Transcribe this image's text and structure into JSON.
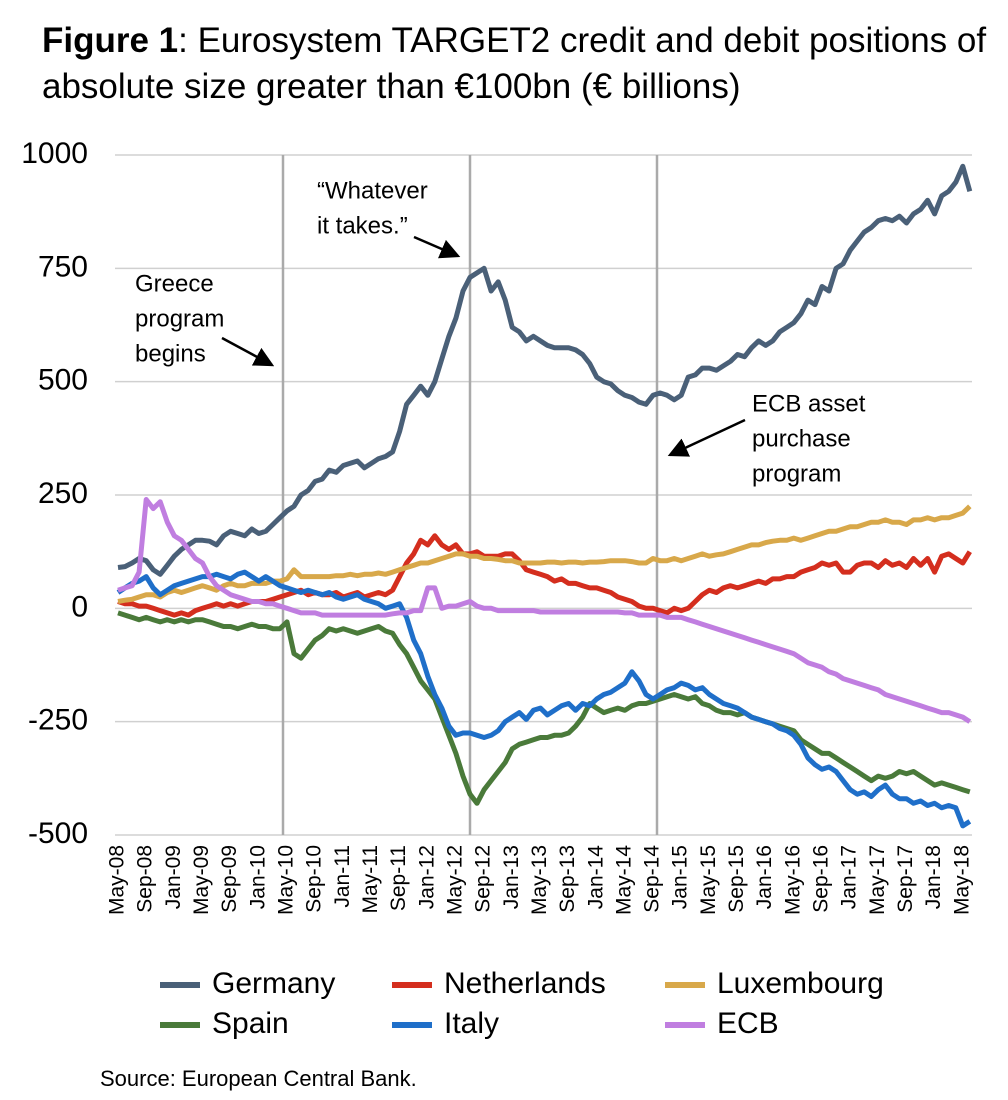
{
  "chart_data": {
    "type": "line",
    "figure_label": "Figure 1",
    "title": ": Eurosystem TARGET2 credit and debit positions of absolute size greater than €100bn (€ billions)",
    "source": "Source: European Central Bank.",
    "annotations": [
      [
        "Greece",
        "program",
        "begins"
      ],
      [
        "“Whatever",
        "it takes.”"
      ],
      [
        "ECB asset",
        "purchase",
        "program"
      ]
    ],
    "categories": [
      "May-08",
      null,
      null,
      null,
      "Sep-08",
      null,
      null,
      null,
      "Jan-09",
      null,
      null,
      null,
      "May-09",
      null,
      null,
      null,
      "Sep-09",
      null,
      null,
      null,
      "Jan-10",
      null,
      null,
      null,
      "May-10",
      null,
      null,
      null,
      "Sep-10",
      null,
      null,
      null,
      "Jan-11",
      null,
      null,
      null,
      "May-11",
      null,
      null,
      null,
      "Sep-11",
      null,
      null,
      null,
      "Jan-12",
      null,
      null,
      null,
      "May-12",
      null,
      null,
      null,
      "Sep-12",
      null,
      null,
      null,
      "Jan-13",
      null,
      null,
      null,
      "May-13",
      null,
      null,
      null,
      "Sep-13",
      null,
      null,
      null,
      "Jan-14",
      null,
      null,
      null,
      "May-14",
      null,
      null,
      null,
      "Sep-14",
      null,
      null,
      null,
      "Jan-15",
      null,
      null,
      null,
      "May-15",
      null,
      null,
      null,
      "Sep-15",
      null,
      null,
      null,
      "Jan-16",
      null,
      null,
      null,
      "May-16",
      null,
      null,
      null,
      "Sep-16",
      null,
      null,
      null,
      "Jan-17",
      null,
      null,
      null,
      "May-17",
      null,
      null,
      null,
      "Sep-17",
      null,
      null,
      null,
      "Jan-18",
      null,
      null,
      null,
      "May-18",
      null
    ],
    "ylim": [
      -500,
      1000
    ],
    "yticks": [
      -500,
      -250,
      0,
      250,
      500,
      750,
      1000
    ],
    "grid": true,
    "series": [
      {
        "name": "Germany",
        "color": "#4a6078",
        "values": [
          90,
          92,
          100,
          110,
          105,
          85,
          75,
          95,
          115,
          130,
          140,
          150,
          150,
          148,
          140,
          160,
          170,
          165,
          160,
          175,
          165,
          170,
          185,
          200,
          215,
          225,
          250,
          260,
          280,
          285,
          305,
          300,
          315,
          320,
          325,
          310,
          320,
          330,
          335,
          345,
          390,
          450,
          470,
          490,
          470,
          500,
          550,
          600,
          640,
          700,
          730,
          740,
          750,
          700,
          720,
          680,
          620,
          610,
          590,
          600,
          590,
          580,
          575,
          575,
          575,
          570,
          560,
          540,
          510,
          500,
          495,
          480,
          470,
          465,
          455,
          450,
          470,
          475,
          470,
          460,
          470,
          510,
          515,
          530,
          530,
          525,
          535,
          545,
          560,
          555,
          575,
          590,
          580,
          590,
          610,
          620,
          630,
          650,
          680,
          670,
          710,
          700,
          750,
          760,
          790,
          810,
          830,
          840,
          855,
          860,
          855,
          865,
          850,
          870,
          880,
          900,
          870,
          910,
          920,
          940,
          975,
          920
        ]
      },
      {
        "name": "Netherlands",
        "color": "#d42e1e",
        "values": [
          15,
          10,
          10,
          5,
          5,
          0,
          -5,
          -10,
          -15,
          -10,
          -15,
          -5,
          0,
          5,
          10,
          5,
          10,
          5,
          10,
          15,
          15,
          15,
          20,
          25,
          30,
          35,
          40,
          30,
          35,
          30,
          30,
          35,
          25,
          30,
          35,
          25,
          30,
          35,
          30,
          40,
          70,
          100,
          120,
          150,
          140,
          160,
          140,
          130,
          140,
          120,
          120,
          125,
          115,
          115,
          115,
          120,
          120,
          105,
          85,
          80,
          75,
          70,
          60,
          65,
          55,
          55,
          50,
          45,
          45,
          40,
          35,
          25,
          20,
          15,
          5,
          0,
          0,
          -5,
          -10,
          0,
          -5,
          0,
          15,
          30,
          40,
          35,
          45,
          50,
          45,
          50,
          55,
          60,
          55,
          65,
          65,
          70,
          70,
          80,
          85,
          90,
          100,
          95,
          100,
          80,
          80,
          95,
          100,
          100,
          90,
          105,
          95,
          100,
          90,
          110,
          95,
          110,
          80,
          115,
          120,
          110,
          100,
          125
        ]
      },
      {
        "name": "Luxembourg",
        "color": "#d8a84a",
        "values": [
          15,
          18,
          20,
          25,
          30,
          30,
          25,
          35,
          40,
          35,
          40,
          45,
          50,
          45,
          40,
          50,
          55,
          50,
          50,
          55,
          55,
          55,
          60,
          60,
          65,
          85,
          70,
          70,
          70,
          70,
          70,
          72,
          72,
          75,
          72,
          75,
          75,
          78,
          75,
          80,
          85,
          90,
          95,
          100,
          100,
          105,
          110,
          115,
          120,
          120,
          115,
          115,
          110,
          110,
          108,
          105,
          105,
          100,
          100,
          100,
          100,
          102,
          102,
          100,
          102,
          102,
          100,
          102,
          102,
          103,
          105,
          105,
          105,
          103,
          100,
          100,
          110,
          105,
          105,
          110,
          105,
          110,
          115,
          120,
          115,
          118,
          120,
          125,
          130,
          135,
          140,
          140,
          145,
          148,
          150,
          150,
          155,
          150,
          155,
          160,
          165,
          170,
          170,
          175,
          180,
          180,
          185,
          190,
          190,
          195,
          190,
          190,
          185,
          195,
          195,
          200,
          195,
          200,
          200,
          205,
          210,
          225
        ]
      },
      {
        "name": "Spain",
        "color": "#4a7a3a",
        "values": [
          -10,
          -15,
          -20,
          -25,
          -20,
          -25,
          -30,
          -25,
          -30,
          -25,
          -30,
          -25,
          -25,
          -30,
          -35,
          -40,
          -40,
          -45,
          -40,
          -35,
          -40,
          -40,
          -45,
          -45,
          -30,
          -100,
          -110,
          -90,
          -70,
          -60,
          -45,
          -50,
          -45,
          -50,
          -55,
          -50,
          -45,
          -40,
          -50,
          -55,
          -80,
          -100,
          -130,
          -160,
          -180,
          -200,
          -240,
          -280,
          -320,
          -370,
          -410,
          -430,
          -400,
          -380,
          -360,
          -340,
          -310,
          -300,
          -295,
          -290,
          -285,
          -285,
          -280,
          -280,
          -275,
          -260,
          -240,
          -210,
          -220,
          -230,
          -225,
          -220,
          -225,
          -215,
          -210,
          -210,
          -205,
          -200,
          -195,
          -190,
          -195,
          -200,
          -195,
          -210,
          -215,
          -225,
          -230,
          -230,
          -235,
          -230,
          -240,
          -245,
          -250,
          -255,
          -260,
          -265,
          -270,
          -290,
          -300,
          -310,
          -320,
          -320,
          -330,
          -340,
          -350,
          -360,
          -370,
          -380,
          -370,
          -375,
          -370,
          -360,
          -365,
          -360,
          -370,
          -380,
          -390,
          -385,
          -390,
          -395,
          -400,
          -405
        ]
      },
      {
        "name": "Italy",
        "color": "#1f6fc9",
        "values": [
          35,
          45,
          55,
          60,
          70,
          45,
          30,
          40,
          50,
          55,
          60,
          65,
          70,
          70,
          75,
          70,
          65,
          75,
          80,
          70,
          60,
          70,
          60,
          50,
          45,
          40,
          35,
          40,
          35,
          30,
          35,
          25,
          20,
          25,
          30,
          20,
          15,
          10,
          0,
          5,
          10,
          -20,
          -70,
          -100,
          -150,
          -190,
          -220,
          -260,
          -280,
          -275,
          -275,
          -280,
          -285,
          -280,
          -270,
          -250,
          -240,
          -230,
          -245,
          -225,
          -220,
          -235,
          -225,
          -215,
          -210,
          -225,
          -210,
          -215,
          -200,
          -190,
          -185,
          -175,
          -165,
          -140,
          -160,
          -190,
          -200,
          -190,
          -180,
          -175,
          -165,
          -170,
          -180,
          -175,
          -190,
          -200,
          -210,
          -215,
          -220,
          -230,
          -240,
          -245,
          -250,
          -255,
          -265,
          -270,
          -280,
          -300,
          -330,
          -345,
          -355,
          -350,
          -360,
          -380,
          -400,
          -410,
          -405,
          -415,
          -400,
          -390,
          -410,
          -420,
          -420,
          -430,
          -425,
          -435,
          -430,
          -440,
          -435,
          -440,
          -480,
          -470
        ]
      },
      {
        "name": "ECB",
        "color": "#c07ee0",
        "values": [
          40,
          45,
          50,
          80,
          240,
          220,
          235,
          190,
          160,
          150,
          130,
          110,
          100,
          70,
          50,
          40,
          30,
          25,
          20,
          15,
          15,
          10,
          10,
          5,
          0,
          -5,
          -10,
          -10,
          -10,
          -15,
          -15,
          -15,
          -15,
          -15,
          -15,
          -15,
          -15,
          -15,
          -15,
          -12,
          -10,
          -10,
          -5,
          -5,
          45,
          45,
          0,
          5,
          5,
          10,
          15,
          5,
          0,
          0,
          -5,
          -5,
          -5,
          -5,
          -5,
          -5,
          -8,
          -8,
          -8,
          -8,
          -8,
          -8,
          -8,
          -8,
          -8,
          -8,
          -8,
          -8,
          -10,
          -10,
          -15,
          -15,
          -15,
          -15,
          -20,
          -20,
          -20,
          -25,
          -30,
          -35,
          -40,
          -45,
          -50,
          -55,
          -60,
          -65,
          -70,
          -75,
          -80,
          -85,
          -90,
          -95,
          -100,
          -110,
          -120,
          -125,
          -130,
          -140,
          -145,
          -155,
          -160,
          -165,
          -170,
          -175,
          -180,
          -190,
          -195,
          -200,
          -205,
          -210,
          -215,
          -220,
          -225,
          -230,
          -230,
          -235,
          -240,
          -250
        ]
      }
    ]
  }
}
